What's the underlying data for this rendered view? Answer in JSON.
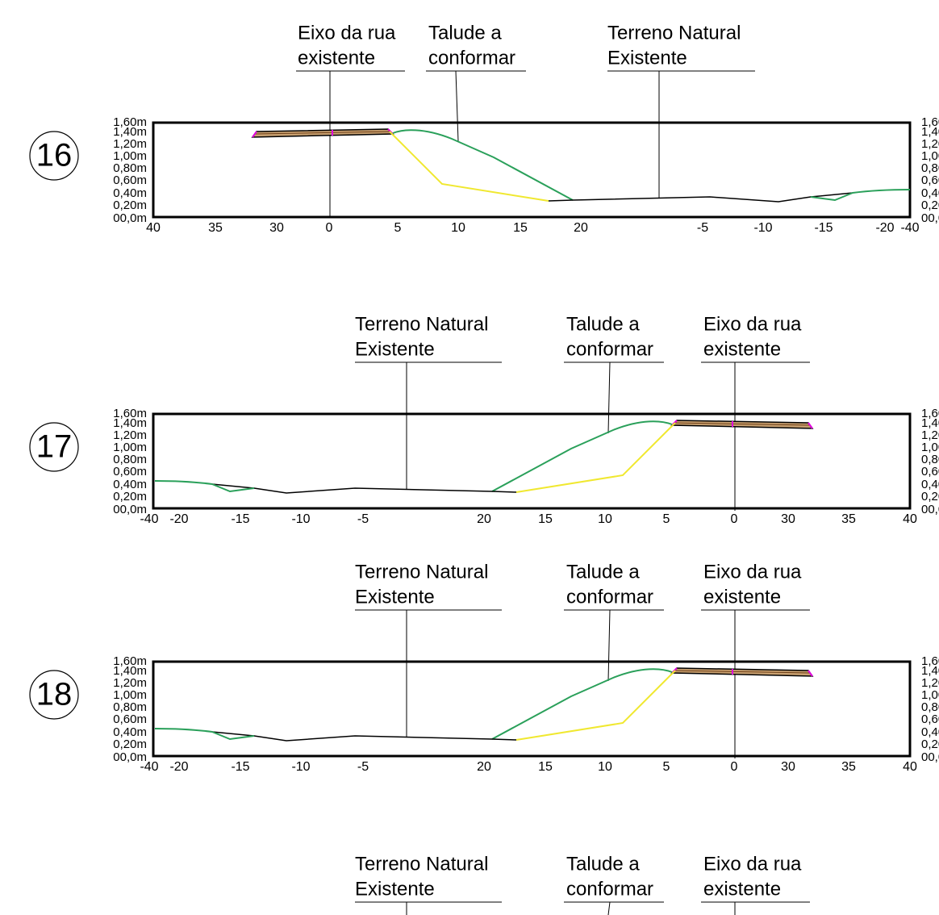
{
  "sections": [
    {
      "number": "16",
      "annotations": [
        {
          "line1": "Eixo da rua",
          "line2": "existente"
        },
        {
          "line1": "Talude a",
          "line2": "conformar"
        },
        {
          "line1": "Terreno Natural",
          "line2": "Existente"
        }
      ],
      "y_labels": [
        "1,60m",
        "1,40m",
        "1,20m",
        "1,00m",
        "0,80m",
        "0,60m",
        "0,40m",
        "0,20m",
        "00,0m"
      ],
      "x_labels": [
        "40",
        "35",
        "30",
        "0",
        "5",
        "10",
        "15",
        "20",
        "-5",
        "-10",
        "-15",
        "-20",
        "-40"
      ]
    },
    {
      "number": "17",
      "annotations": [
        {
          "line1": "Terreno Natural",
          "line2": "Existente"
        },
        {
          "line1": "Talude a",
          "line2": "conformar"
        },
        {
          "line1": "Eixo da rua",
          "line2": "existente"
        }
      ],
      "y_labels": [
        "1,60m",
        "1,40m",
        "1,20m",
        "1,00m",
        "0,80m",
        "0,60m",
        "0,40m",
        "0,20m",
        "00,0m"
      ],
      "x_labels": [
        "-40",
        "-20",
        "-15",
        "-10",
        "-5",
        "20",
        "15",
        "10",
        "5",
        "0",
        "30",
        "35",
        "40"
      ]
    },
    {
      "number": "18",
      "annotations": [
        {
          "line1": "Terreno Natural",
          "line2": "Existente"
        },
        {
          "line1": "Talude a",
          "line2": "conformar"
        },
        {
          "line1": "Eixo da rua",
          "line2": "existente"
        }
      ],
      "y_labels": [
        "1,60m",
        "1,40m",
        "1,20m",
        "1,00m",
        "0,80m",
        "0,60m",
        "0,40m",
        "0,20m",
        "00,0m"
      ],
      "x_labels": [
        "-40",
        "-20",
        "-15",
        "-10",
        "-5",
        "20",
        "15",
        "10",
        "5",
        "0",
        "30",
        "35",
        "40"
      ]
    },
    {
      "annotations": [
        {
          "line1": "Terreno Natural",
          "line2": "Existente"
        },
        {
          "line1": "Talude a",
          "line2": "conformar"
        },
        {
          "line1": "Eixo da rua",
          "line2": "existente"
        }
      ]
    }
  ]
}
